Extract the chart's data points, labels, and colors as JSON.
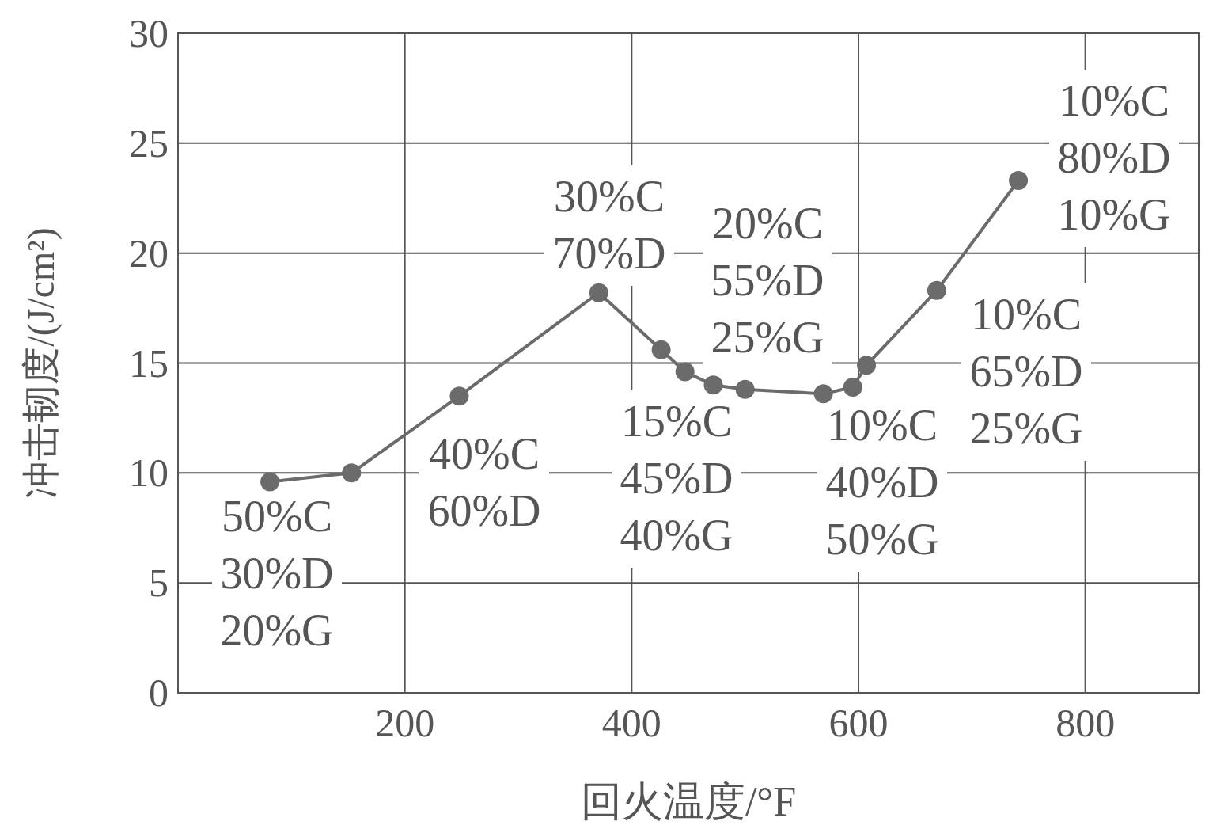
{
  "chart_data": {
    "type": "line",
    "xlabel": "回火温度/°F",
    "ylabel": "冲击韧度/(J/cm²)",
    "x": [
      81,
      153,
      248,
      371,
      426,
      447,
      472,
      500,
      569,
      595,
      607,
      669,
      741
    ],
    "series": [
      {
        "color": "#6b6b6b",
        "values": [
          9.6,
          10.0,
          13.5,
          18.2,
          15.6,
          14.6,
          14.0,
          13.8,
          13.6,
          13.9,
          14.9,
          18.3,
          23.3
        ]
      }
    ],
    "xlim": [
      0,
      900
    ],
    "xticks": [
      200,
      400,
      600,
      800
    ],
    "ylim": [
      0,
      30
    ],
    "yticks": [
      0,
      5,
      10,
      15,
      20,
      25,
      30
    ],
    "grid": true,
    "marker": "circle",
    "line_style": "solid",
    "annotations": [
      "50%C\n30%D\n20%G",
      "40%C\n60%D",
      "30%C\n70%D",
      "20%C\n55%D\n25%G",
      "15%C\n45%D\n40%G",
      "10%C\n40%D\n50%G",
      "10%C\n65%D\n25%G",
      "10%C\n80%D\n10%G"
    ]
  }
}
